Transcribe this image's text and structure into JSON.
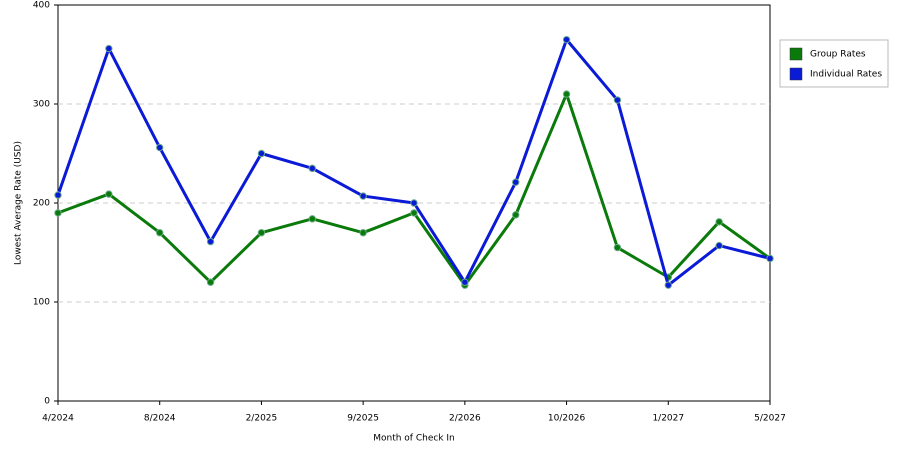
{
  "chart_data": {
    "type": "line",
    "x_label": "Month of Check In",
    "y_label": "Lowest Average Rate (USD)",
    "categories": [
      "4/2024",
      null,
      "8/2024",
      null,
      "2/2025",
      null,
      "9/2025",
      null,
      "2/2026",
      null,
      "10/2026",
      null,
      "1/2027",
      null,
      "5/2027"
    ],
    "series": [
      {
        "name": "Group Rates",
        "color": "#0a7a0a",
        "values": [
          190,
          209,
          170,
          120,
          170,
          184,
          170,
          190,
          117,
          188,
          310,
          155,
          125,
          181,
          144
        ]
      },
      {
        "name": "Individual Rates",
        "color": "#0a1ad6",
        "values": [
          208,
          356,
          256,
          161,
          250,
          235,
          207,
          200,
          120,
          221,
          365,
          304,
          117,
          157,
          144
        ]
      }
    ],
    "ylim": [
      0,
      400
    ],
    "yticks": [
      0,
      100,
      200,
      300,
      400
    ],
    "grid": true,
    "legend": "right"
  }
}
